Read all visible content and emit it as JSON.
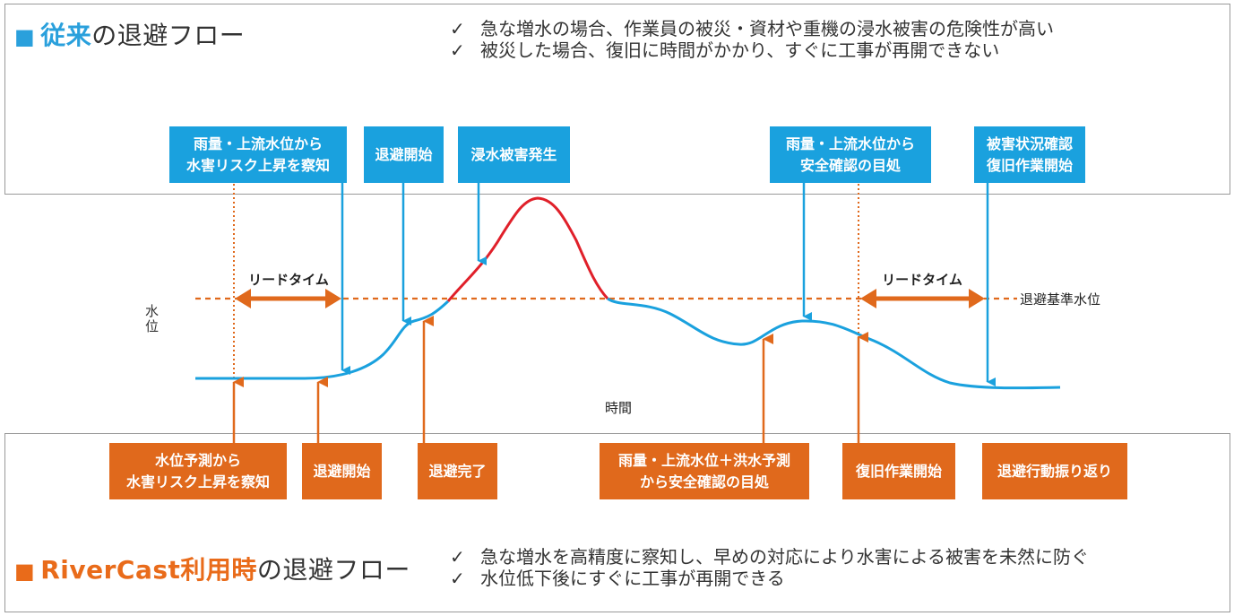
{
  "conventional": {
    "heading_square": "■",
    "heading_accent": "従来",
    "heading_rest": "の退避フロー",
    "check": "✓",
    "bullets": [
      "急な増水の場合、作業員の被災・資材や重機の浸水被害の危険性が高い",
      "被災した場合、復旧に時間がかかり、すぐに工事が再開できない"
    ],
    "boxes": [
      "雨量・上流水位から\n水害リスク上昇を察知",
      "退避開始",
      "浸水被害発生",
      "雨量・上流水位から\n安全確認の目処",
      "被害状況確認\n復旧作業開始"
    ]
  },
  "rivercast": {
    "heading_square": "■",
    "heading_accent": "RiverCast利用時",
    "heading_rest": "の退避フロー",
    "check": "✓",
    "bullets": [
      "急な増水を高精度に察知し、早めの対応により水害による被害を未然に防ぐ",
      "水位低下後にすぐに工事が再開できる"
    ],
    "boxes": [
      "水位予測から\n水害リスク上昇を察知",
      "退避開始",
      "退避完了",
      "雨量・上流水位＋洪水予測\nから安全確認の目処",
      "復旧作業開始",
      "退避行動振り返り"
    ]
  },
  "chart": {
    "y_axis_label": "水\n位",
    "x_axis_label": "時間",
    "threshold_label": "退避基準水位",
    "lead_time_label": "リードタイム",
    "colors": {
      "blue": "#1aa1de",
      "orange": "#e0691c",
      "flood_red": "#e0202a"
    }
  }
}
